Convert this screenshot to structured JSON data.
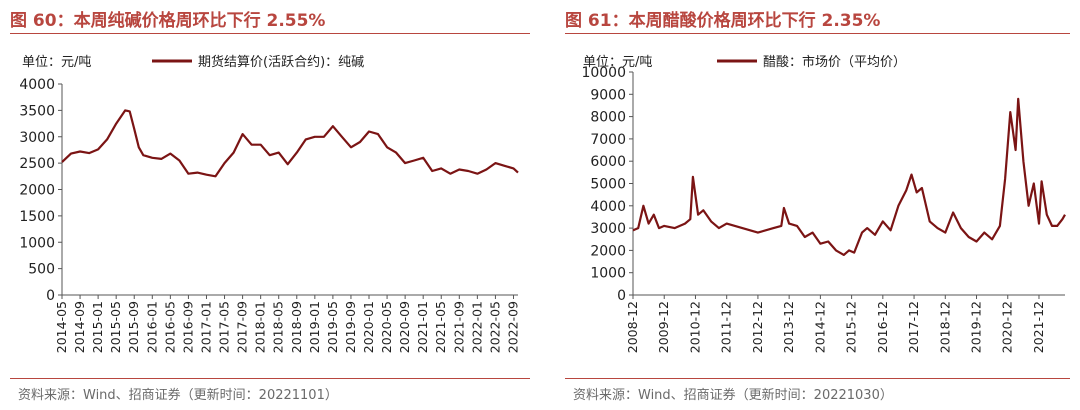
{
  "figures": [
    {
      "title": "图 60：本周纯碱价格周环比下行 2.55%",
      "source": "资料来源：Wind、招商证券（更新时间：20221101）",
      "chart_data": {
        "type": "line",
        "unit_label": "单位：元/吨",
        "ylim": [
          0,
          4000
        ],
        "yticks": [
          0,
          500,
          1000,
          1500,
          2000,
          2500,
          3000,
          3500,
          4000
        ],
        "xticks": [
          "2014-05",
          "2014-09",
          "2015-01",
          "2015-05",
          "2015-09",
          "2016-01",
          "2016-05",
          "2016-09",
          "2017-01",
          "2017-05",
          "2017-09",
          "2018-01",
          "2018-05",
          "2018-09",
          "2019-01",
          "2019-05",
          "2019-09",
          "2020-01",
          "2020-05",
          "2020-09",
          "2021-01",
          "2021-05",
          "2021-09",
          "2022-01",
          "2022-05",
          "2022-09"
        ],
        "grid": false,
        "legend_position": "top",
        "color": "#7b1414",
        "series": [
          {
            "name": "期货结算价(活跃合约)：纯碱",
            "x": [
              "2014-05",
              "2014-07",
              "2014-09",
              "2014-11",
              "2015-01",
              "2015-03",
              "2015-05",
              "2015-07",
              "2015-08",
              "2015-09",
              "2015-10",
              "2015-11",
              "2016-01",
              "2016-03",
              "2016-05",
              "2016-07",
              "2016-09",
              "2016-11",
              "2017-01",
              "2017-03",
              "2017-05",
              "2017-07",
              "2017-09",
              "2017-11",
              "2018-01",
              "2018-03",
              "2018-05",
              "2018-07",
              "2018-09",
              "2018-11",
              "2019-01",
              "2019-03",
              "2019-05",
              "2019-07",
              "2019-09",
              "2019-11",
              "2020-01",
              "2020-03",
              "2020-05",
              "2020-07",
              "2020-09",
              "2020-11",
              "2021-01",
              "2021-03",
              "2021-05",
              "2021-07",
              "2021-09",
              "2021-11",
              "2022-01",
              "2022-03",
              "2022-05",
              "2022-07",
              "2022-09",
              "2022-10"
            ],
            "values": [
              2520,
              2680,
              2720,
              2690,
              2760,
              2950,
              3250,
              3500,
              3480,
              3150,
              2800,
              2650,
              2600,
              2580,
              2680,
              2550,
              2300,
              2320,
              2280,
              2250,
              2500,
              2700,
              3050,
              2850,
              2850,
              2650,
              2700,
              2480,
              2700,
              2950,
              3000,
              3000,
              3200,
              3000,
              2800,
              2900,
              3100,
              3050,
              2800,
              2700,
              2500,
              2550,
              2600,
              2350,
              2400,
              2300,
              2380,
              2350,
              2300,
              2380,
              2500,
              2450,
              2400,
              2320
            ]
          }
        ]
      }
    },
    {
      "title": "图 61：本周醋酸价格周环比下行 2.35%",
      "source": "资料来源：Wind、招商证券（更新时间：20221030）",
      "chart_data": {
        "type": "line",
        "unit_label": "单位：元/吨",
        "ylim": [
          0,
          10000
        ],
        "yticks": [
          0,
          1000,
          2000,
          3000,
          4000,
          5000,
          6000,
          7000,
          8000,
          9000,
          10000
        ],
        "xticks": [
          "2008-12",
          "2009-12",
          "2010-12",
          "2011-12",
          "2012-12",
          "2013-12",
          "2014-12",
          "2015-12",
          "2016-12",
          "2017-12",
          "2018-12",
          "2019-12",
          "2020-12",
          "2021-12"
        ],
        "grid": false,
        "legend_position": "top",
        "color": "#7b1414",
        "series": [
          {
            "name": "醋酸：市场价（平均价）",
            "x": [
              "2008-12",
              "2009-02",
              "2009-04",
              "2009-06",
              "2009-08",
              "2009-10",
              "2009-12",
              "2010-04",
              "2010-08",
              "2010-10",
              "2010-11",
              "2011-01",
              "2011-03",
              "2011-06",
              "2011-09",
              "2011-12",
              "2012-06",
              "2012-12",
              "2013-06",
              "2013-09",
              "2013-10",
              "2013-12",
              "2014-03",
              "2014-06",
              "2014-09",
              "2014-12",
              "2015-03",
              "2015-06",
              "2015-09",
              "2015-11",
              "2016-01",
              "2016-04",
              "2016-06",
              "2016-09",
              "2016-12",
              "2017-03",
              "2017-06",
              "2017-09",
              "2017-11",
              "2018-01",
              "2018-03",
              "2018-06",
              "2018-09",
              "2018-12",
              "2019-03",
              "2019-06",
              "2019-09",
              "2019-12",
              "2020-03",
              "2020-06",
              "2020-09",
              "2020-11",
              "2021-01",
              "2021-03",
              "2021-04",
              "2021-06",
              "2021-08",
              "2021-10",
              "2021-12",
              "2022-01",
              "2022-03",
              "2022-05",
              "2022-07",
              "2022-09",
              "2022-10"
            ],
            "values": [
              2900,
              3000,
              4000,
              3200,
              3600,
              3000,
              3100,
              3000,
              3200,
              3400,
              5300,
              3600,
              3800,
              3300,
              3000,
              3200,
              3000,
              2800,
              3000,
              3100,
              3900,
              3200,
              3100,
              2600,
              2800,
              2300,
              2400,
              2000,
              1800,
              2000,
              1900,
              2800,
              3000,
              2700,
              3300,
              2900,
              4000,
              4700,
              5400,
              4600,
              4800,
              3300,
              3000,
              2800,
              3700,
              3000,
              2600,
              2400,
              2800,
              2500,
              3100,
              5200,
              8200,
              6500,
              8800,
              6000,
              4000,
              5000,
              3200,
              5100,
              3600,
              3100,
              3100,
              3400,
              3600
            ]
          }
        ]
      }
    }
  ]
}
